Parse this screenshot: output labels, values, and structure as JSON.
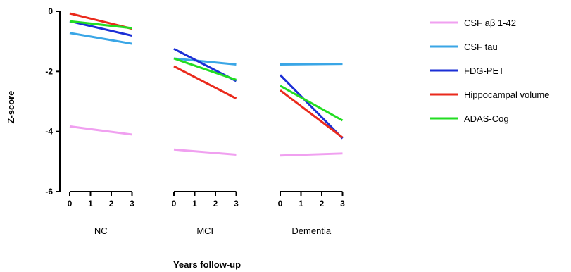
{
  "chart_data": {
    "type": "line",
    "title": "",
    "xlabel": "Years follow-up",
    "ylabel": "Z-score",
    "ylim": [
      -6,
      0
    ],
    "y_ticks": [
      0,
      -2,
      -4,
      -6
    ],
    "x_ticks": [
      0,
      1,
      2,
      3
    ],
    "groups": [
      "NC",
      "MCI",
      "Dementia"
    ],
    "grid": false,
    "legend_position": "right",
    "series": [
      {
        "name": "CSF aβ 1-42",
        "color": "#f0a0f0",
        "values": {
          "NC": [
            -3.83,
            -4.1
          ],
          "MCI": [
            -4.6,
            -4.77
          ],
          "Dementia": [
            -4.8,
            -4.73
          ]
        }
      },
      {
        "name": "CSF tau",
        "color": "#3aa6e6",
        "values": {
          "NC": [
            -0.72,
            -1.08
          ],
          "MCI": [
            -1.57,
            -1.77
          ],
          "Dementia": [
            -1.77,
            -1.75
          ]
        }
      },
      {
        "name": "FDG-PET",
        "color": "#1b2fd6",
        "values": {
          "NC": [
            -0.33,
            -0.81
          ],
          "MCI": [
            -1.25,
            -2.32
          ],
          "Dementia": [
            -2.12,
            -4.23
          ]
        }
      },
      {
        "name": "Hippocampal volume",
        "color": "#ea2a1c",
        "values": {
          "NC": [
            -0.07,
            -0.58
          ],
          "MCI": [
            -1.83,
            -2.9
          ],
          "Dementia": [
            -2.63,
            -4.2
          ]
        }
      },
      {
        "name": "ADAS-Cog",
        "color": "#22dd22",
        "values": {
          "NC": [
            -0.33,
            -0.56
          ],
          "MCI": [
            -1.57,
            -2.28
          ],
          "Dementia": [
            -2.48,
            -3.63
          ]
        }
      }
    ]
  }
}
